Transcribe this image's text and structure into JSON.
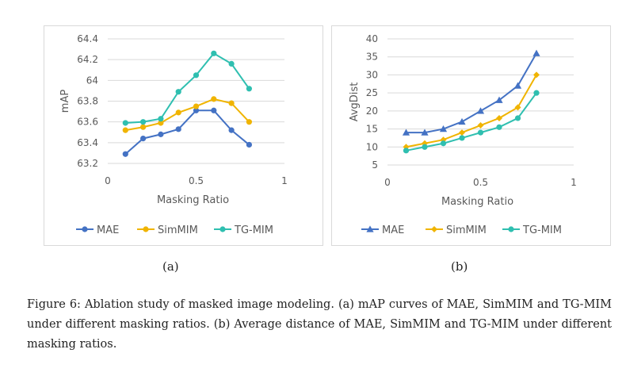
{
  "chart_data": [
    {
      "type": "line",
      "title": "",
      "xlabel": "Masking Ratio",
      "ylabel": "mAP",
      "xlim": [
        0,
        1
      ],
      "ylim": [
        63.2,
        64.4
      ],
      "xticks": [
        0,
        0.5,
        1
      ],
      "xtick_labels": [
        "0",
        "0.5",
        "1"
      ],
      "yticks": [
        63.2,
        63.4,
        63.6,
        63.8,
        64,
        64.2,
        64.4
      ],
      "ytick_labels": [
        "63.2",
        "63.4",
        "63.6",
        "63.8",
        "64",
        "64.2",
        "64.4"
      ],
      "x": [
        0.1,
        0.2,
        0.3,
        0.4,
        0.5,
        0.6,
        0.7,
        0.8
      ],
      "legend_position": "bottom",
      "series": [
        {
          "name": "MAE",
          "color": "#4472c4",
          "marker": "circle",
          "values": [
            63.29,
            63.44,
            63.48,
            63.53,
            63.71,
            63.71,
            63.52,
            63.38
          ]
        },
        {
          "name": "SimMIM",
          "color": "#f0b400",
          "marker": "circle",
          "values": [
            63.52,
            63.55,
            63.59,
            63.69,
            63.75,
            63.82,
            63.78,
            63.6
          ]
        },
        {
          "name": "TG-MIM",
          "color": "#2fbfb0",
          "marker": "circle",
          "values": [
            63.59,
            63.6,
            63.63,
            63.89,
            64.05,
            64.26,
            64.16,
            63.92
          ]
        }
      ]
    },
    {
      "type": "line",
      "title": "",
      "xlabel": "Masking Ratio",
      "ylabel": "AvgDist",
      "xlim": [
        0,
        1
      ],
      "ylim": [
        5,
        40
      ],
      "xticks": [
        0,
        0.5,
        1
      ],
      "xtick_labels": [
        "0",
        "0.5",
        "1"
      ],
      "yticks": [
        5,
        10,
        15,
        20,
        25,
        30,
        35,
        40
      ],
      "ytick_labels": [
        "5",
        "10",
        "15",
        "20",
        "25",
        "30",
        "35",
        "40"
      ],
      "x": [
        0.1,
        0.2,
        0.3,
        0.4,
        0.5,
        0.6,
        0.7,
        0.8
      ],
      "legend_position": "bottom",
      "series": [
        {
          "name": "MAE",
          "color": "#4472c4",
          "marker": "triangle",
          "values": [
            14,
            14,
            15,
            17,
            20,
            23,
            27,
            36
          ]
        },
        {
          "name": "SimMIM",
          "color": "#f0b400",
          "marker": "diamond",
          "values": [
            10,
            11,
            12,
            14,
            16,
            18,
            21,
            30
          ]
        },
        {
          "name": "TG-MIM",
          "color": "#2fbfb0",
          "marker": "circle",
          "values": [
            9,
            10,
            11,
            12.5,
            14,
            15.5,
            18,
            25
          ]
        }
      ]
    }
  ],
  "subfigure_labels": [
    "(a)",
    "(b)"
  ],
  "caption": "Figure 6:  Ablation study of masked image modeling.  (a) mAP curves of MAE, SimMIM and TG-MIM under different masking ratios.  (b) Average distance of MAE, SimMIM and TG-MIM under different masking ratios."
}
